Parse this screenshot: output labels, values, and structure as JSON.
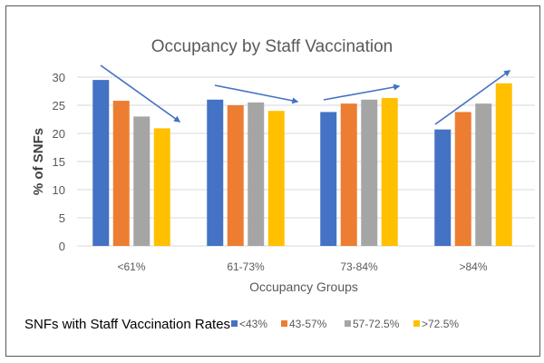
{
  "chart_data": {
    "type": "bar",
    "title": "Occupancy by Staff Vaccination",
    "xlabel": "Occupancy Groups",
    "ylabel": "% of SNFs",
    "ylim": [
      0,
      30
    ],
    "yticks": [
      "0",
      "5",
      "10",
      "15",
      "20",
      "25",
      "30"
    ],
    "grid": true,
    "legend_title": "SNFs with Staff Vaccination Rates",
    "legend_placement": "bottom",
    "categories": [
      "<61%",
      "61-73%",
      "73-84%",
      ">84%"
    ],
    "series": [
      {
        "name": "<43%",
        "color": "#4472C4",
        "values": [
          29.5,
          26.0,
          23.8,
          20.7
        ]
      },
      {
        "name": "43-57%",
        "color": "#ED7D31",
        "values": [
          25.8,
          25.0,
          25.3,
          23.8
        ]
      },
      {
        "name": "57-72.5%",
        "color": "#A5A5A5",
        "values": [
          23.0,
          25.5,
          26.0,
          25.3
        ]
      },
      {
        "name": ">72.5%",
        "color": "#FFC000",
        "values": [
          20.9,
          24.0,
          26.3,
          28.9
        ]
      }
    ],
    "annotations": [
      {
        "type": "trend-arrow",
        "group": "<61%",
        "direction": "down"
      },
      {
        "type": "trend-arrow",
        "group": "61-73%",
        "direction": "slightly-down"
      },
      {
        "type": "trend-arrow",
        "group": "73-84%",
        "direction": "slightly-up"
      },
      {
        "type": "trend-arrow",
        "group": ">84%",
        "direction": "up"
      }
    ]
  }
}
